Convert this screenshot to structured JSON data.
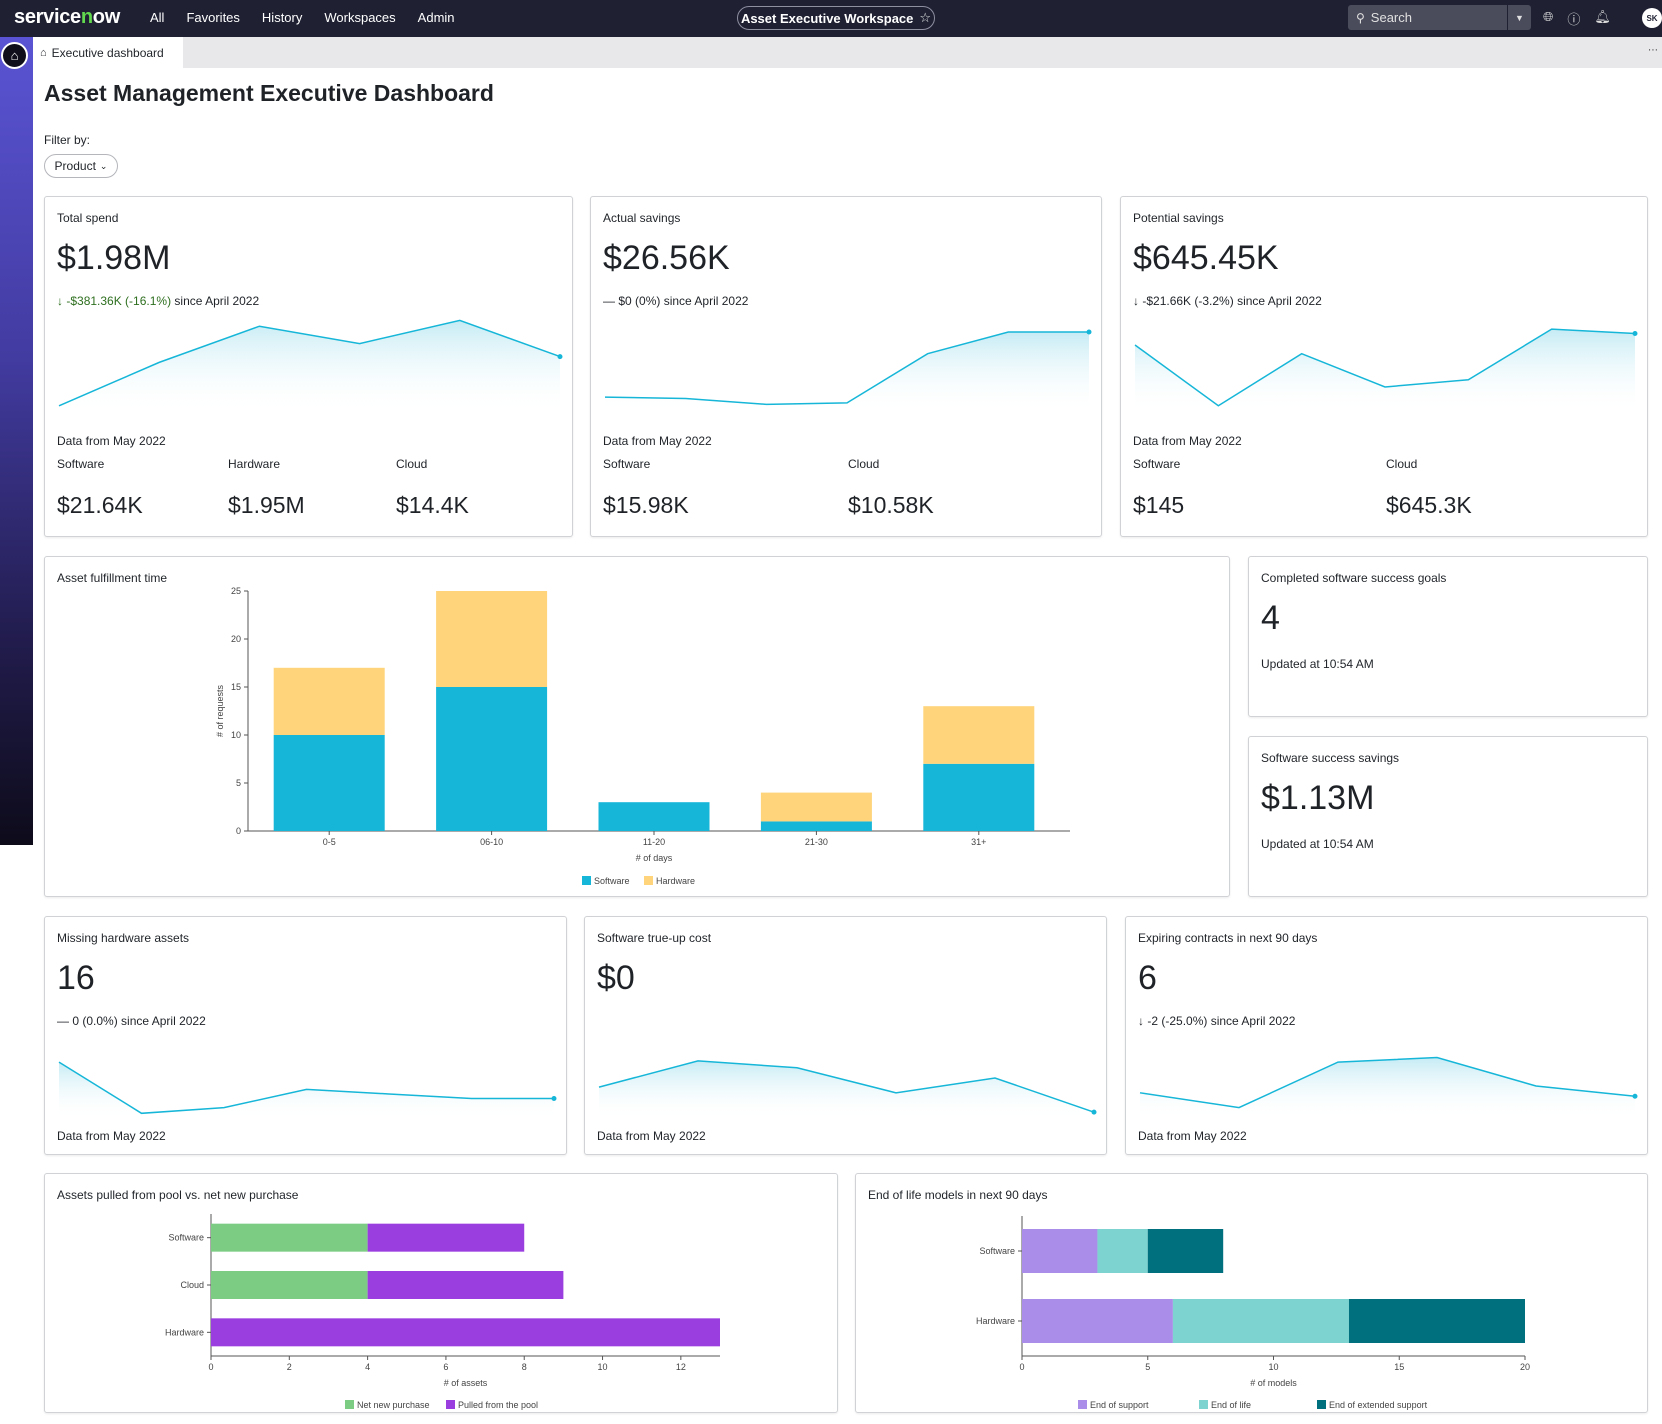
{
  "nav": {
    "logo": "servicenow",
    "menu": [
      "All",
      "Favorites",
      "History",
      "Workspaces",
      "Admin"
    ],
    "workspace": "Asset Executive Workspace",
    "search_placeholder": "Search",
    "avatar_initials": "SK"
  },
  "tab": {
    "label": "Executive dashboard"
  },
  "page": {
    "title": "Asset Management Executive Dashboard",
    "filter_label": "Filter by:",
    "filter_button": "Product"
  },
  "kpis": {
    "total_spend": {
      "title": "Total spend",
      "value": "$1.98M",
      "delta": "-$381.36K (-16.1%)",
      "since": " since April 2022",
      "footer": "Data from May 2022",
      "spark": [
        2,
        5,
        7.5,
        6.3,
        7.9,
        5.4
      ],
      "breakdown": [
        {
          "label": "Software",
          "value": "$21.64K"
        },
        {
          "label": "Hardware",
          "value": "$1.95M"
        },
        {
          "label": "Cloud",
          "value": "$14.4K"
        }
      ]
    },
    "actual_savings": {
      "title": "Actual savings",
      "value": "$26.56K",
      "delta": "$0 (0%)",
      "since": " since April 2022",
      "footer": "Data from May 2022",
      "spark": [
        2.6,
        2.5,
        2.1,
        2.2,
        5.6,
        7.1,
        7.1
      ],
      "breakdown": [
        {
          "label": "Software",
          "value": "$15.98K"
        },
        {
          "label": "Cloud",
          "value": "$10.58K"
        }
      ]
    },
    "potential_savings": {
      "title": "Potential savings",
      "value": "$645.45K",
      "delta": "-$21.66K (-3.2%)",
      "since": " since April 2022",
      "footer": "Data from May 2022",
      "spark": [
        6.2,
        2,
        5.6,
        3.3,
        3.8,
        7.3,
        7
      ],
      "breakdown": [
        {
          "label": "Software",
          "value": "$145"
        },
        {
          "label": "Cloud",
          "value": "$645.3K"
        }
      ]
    },
    "missing_hw": {
      "title": "Missing hardware assets",
      "value": "16",
      "delta": "0 (0.0%)",
      "since": " since April 2022",
      "footer": "Data from May 2022",
      "spark": [
        6.5,
        2,
        2.5,
        4.1,
        3.7,
        3.3,
        3.3
      ]
    },
    "trueup": {
      "title": "Software true-up cost",
      "value": "$0",
      "footer": "Data from May 2022",
      "spark": [
        4.3,
        6.6,
        6,
        3.8,
        5.1,
        2.1
      ]
    },
    "expiring": {
      "title": "Expiring contracts in next 90 days",
      "value": "6",
      "delta": "-2 (-25.0%)",
      "since": " since April 2022",
      "footer": "Data from May 2022",
      "spark": [
        3.8,
        2.5,
        6.5,
        6.9,
        4.4,
        3.5
      ]
    },
    "goals": {
      "title": "Completed software success goals",
      "value": "4",
      "updated": "Updated at 10:54 AM"
    },
    "sw_savings": {
      "title": "Software success savings",
      "value": "$1.13M",
      "updated": "Updated at 10:54 AM"
    }
  },
  "chart_data": [
    {
      "type": "bar",
      "title": "Asset fulfillment time",
      "categories": [
        "0-5",
        "06-10",
        "11-20",
        "21-30",
        "31+"
      ],
      "series": [
        {
          "name": "Software",
          "values": [
            10,
            15,
            3,
            1,
            7
          ],
          "color": "#16b6d8"
        },
        {
          "name": "Hardware",
          "values": [
            7,
            10,
            0,
            3,
            6
          ],
          "color": "#ffd47a"
        }
      ],
      "stacked": true,
      "xlabel": "# of days",
      "ylabel": "# of requests",
      "ylim": [
        0,
        25
      ],
      "yticks": [
        0,
        5,
        10,
        15,
        20,
        25
      ],
      "legend": "bottom"
    },
    {
      "type": "bar",
      "orientation": "horizontal",
      "title": "Assets pulled from pool vs. net new purchase",
      "categories": [
        "Software",
        "Cloud",
        "Hardware"
      ],
      "series": [
        {
          "name": "Net new purchase",
          "values": [
            4,
            4,
            0
          ],
          "color": "#7ccc84"
        },
        {
          "name": "Pulled from the pool",
          "values": [
            4,
            5,
            13
          ],
          "color": "#9b3ee0"
        }
      ],
      "stacked": true,
      "xlabel": "# of assets",
      "xlim": [
        0,
        13
      ],
      "xticks": [
        0,
        2,
        4,
        6,
        8,
        10,
        12
      ],
      "legend": "bottom"
    },
    {
      "type": "bar",
      "orientation": "horizontal",
      "title": "End of life models in next 90 days",
      "categories": [
        "Software",
        "Hardware"
      ],
      "series": [
        {
          "name": "End of support",
          "values": [
            3,
            6
          ],
          "color": "#a98de8"
        },
        {
          "name": "End of life",
          "values": [
            2,
            7
          ],
          "color": "#7dd3d0"
        },
        {
          "name": "End of extended support",
          "values": [
            3,
            7
          ],
          "color": "#00707f"
        }
      ],
      "stacked": true,
      "xlabel": "# of models",
      "xlim": [
        0,
        20
      ],
      "xticks": [
        0,
        5,
        10,
        15,
        20
      ],
      "legend": "bottom"
    }
  ]
}
